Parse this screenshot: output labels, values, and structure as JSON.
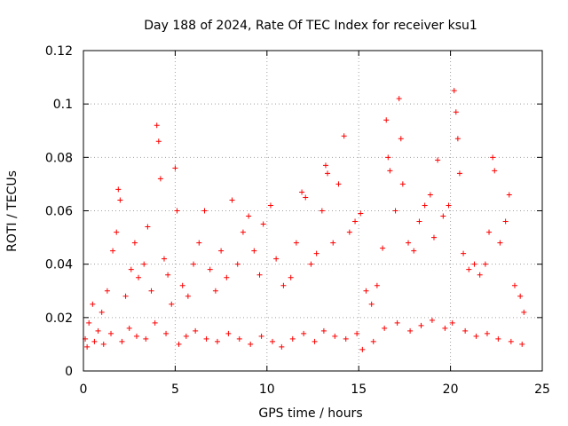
{
  "chart_data": {
    "type": "scatter",
    "title": "Day 188 of 2024, Rate Of TEC Index for receiver ksu1",
    "xlabel": "GPS time / hours",
    "ylabel": "ROTI / TECUs",
    "xlim": [
      0,
      25
    ],
    "ylim": [
      0,
      0.12
    ],
    "xticks": [
      0,
      5,
      10,
      15,
      20,
      25
    ],
    "yticks": [
      0,
      0.02,
      0.04,
      0.06,
      0.08,
      0.1,
      0.12
    ],
    "xtick_labels": [
      "0",
      "5",
      "10",
      "15",
      "20",
      "25"
    ],
    "ytick_labels": [
      "0",
      "0.02",
      "0.04",
      "0.06",
      "0.08",
      "0.1",
      "0.12"
    ],
    "grid": true,
    "legend": "none",
    "marker": "+",
    "color": "#ff0000",
    "series": [
      {
        "name": "ROTI",
        "points": [
          [
            0.1,
            0.012
          ],
          [
            0.3,
            0.018
          ],
          [
            0.5,
            0.025
          ],
          [
            0.8,
            0.015
          ],
          [
            1.0,
            0.022
          ],
          [
            1.3,
            0.03
          ],
          [
            1.6,
            0.045
          ],
          [
            1.8,
            0.052
          ],
          [
            1.9,
            0.068
          ],
          [
            2.0,
            0.064
          ],
          [
            2.3,
            0.028
          ],
          [
            2.6,
            0.038
          ],
          [
            2.8,
            0.048
          ],
          [
            3.0,
            0.035
          ],
          [
            3.3,
            0.04
          ],
          [
            3.5,
            0.054
          ],
          [
            3.7,
            0.03
          ],
          [
            4.0,
            0.092
          ],
          [
            4.1,
            0.086
          ],
          [
            4.2,
            0.072
          ],
          [
            4.4,
            0.042
          ],
          [
            4.6,
            0.036
          ],
          [
            4.8,
            0.025
          ],
          [
            5.0,
            0.076
          ],
          [
            5.1,
            0.06
          ],
          [
            5.4,
            0.032
          ],
          [
            5.7,
            0.028
          ],
          [
            6.0,
            0.04
          ],
          [
            6.3,
            0.048
          ],
          [
            6.6,
            0.06
          ],
          [
            6.9,
            0.038
          ],
          [
            7.2,
            0.03
          ],
          [
            7.5,
            0.045
          ],
          [
            7.8,
            0.035
          ],
          [
            8.1,
            0.064
          ],
          [
            8.4,
            0.04
          ],
          [
            8.7,
            0.052
          ],
          [
            9.0,
            0.058
          ],
          [
            9.3,
            0.045
          ],
          [
            9.6,
            0.036
          ],
          [
            9.8,
            0.055
          ],
          [
            10.2,
            0.062
          ],
          [
            10.5,
            0.042
          ],
          [
            10.9,
            0.032
          ],
          [
            11.3,
            0.035
          ],
          [
            11.6,
            0.048
          ],
          [
            11.9,
            0.067
          ],
          [
            12.1,
            0.065
          ],
          [
            12.4,
            0.04
          ],
          [
            12.7,
            0.044
          ],
          [
            13.0,
            0.06
          ],
          [
            13.2,
            0.077
          ],
          [
            13.3,
            0.074
          ],
          [
            13.6,
            0.048
          ],
          [
            13.9,
            0.07
          ],
          [
            14.2,
            0.088
          ],
          [
            14.5,
            0.052
          ],
          [
            14.8,
            0.056
          ],
          [
            15.1,
            0.059
          ],
          [
            15.4,
            0.03
          ],
          [
            15.7,
            0.025
          ],
          [
            16.0,
            0.032
          ],
          [
            16.3,
            0.046
          ],
          [
            16.5,
            0.094
          ],
          [
            16.6,
            0.08
          ],
          [
            16.7,
            0.075
          ],
          [
            17.0,
            0.06
          ],
          [
            17.2,
            0.102
          ],
          [
            17.3,
            0.087
          ],
          [
            17.4,
            0.07
          ],
          [
            17.7,
            0.048
          ],
          [
            18.0,
            0.045
          ],
          [
            18.3,
            0.056
          ],
          [
            18.6,
            0.062
          ],
          [
            18.9,
            0.066
          ],
          [
            19.1,
            0.05
          ],
          [
            19.3,
            0.079
          ],
          [
            19.6,
            0.058
          ],
          [
            19.9,
            0.062
          ],
          [
            20.2,
            0.105
          ],
          [
            20.3,
            0.097
          ],
          [
            20.4,
            0.087
          ],
          [
            20.5,
            0.074
          ],
          [
            20.7,
            0.044
          ],
          [
            21.0,
            0.038
          ],
          [
            21.3,
            0.04
          ],
          [
            21.6,
            0.036
          ],
          [
            21.9,
            0.04
          ],
          [
            22.1,
            0.052
          ],
          [
            22.3,
            0.08
          ],
          [
            22.4,
            0.075
          ],
          [
            22.7,
            0.048
          ],
          [
            23.0,
            0.056
          ],
          [
            23.2,
            0.066
          ],
          [
            23.5,
            0.032
          ],
          [
            23.8,
            0.028
          ],
          [
            24.0,
            0.022
          ],
          [
            0.2,
            0.009
          ],
          [
            0.6,
            0.011
          ],
          [
            1.1,
            0.01
          ],
          [
            1.5,
            0.014
          ],
          [
            2.1,
            0.011
          ],
          [
            2.5,
            0.016
          ],
          [
            2.9,
            0.013
          ],
          [
            3.4,
            0.012
          ],
          [
            3.9,
            0.018
          ],
          [
            4.5,
            0.014
          ],
          [
            5.2,
            0.01
          ],
          [
            5.6,
            0.013
          ],
          [
            6.1,
            0.015
          ],
          [
            6.7,
            0.012
          ],
          [
            7.3,
            0.011
          ],
          [
            7.9,
            0.014
          ],
          [
            8.5,
            0.012
          ],
          [
            9.1,
            0.01
          ],
          [
            9.7,
            0.013
          ],
          [
            10.3,
            0.011
          ],
          [
            10.8,
            0.009
          ],
          [
            11.4,
            0.012
          ],
          [
            12.0,
            0.014
          ],
          [
            12.6,
            0.011
          ],
          [
            13.1,
            0.015
          ],
          [
            13.7,
            0.013
          ],
          [
            14.3,
            0.012
          ],
          [
            14.9,
            0.014
          ],
          [
            15.2,
            0.008
          ],
          [
            15.8,
            0.011
          ],
          [
            16.4,
            0.016
          ],
          [
            17.1,
            0.018
          ],
          [
            17.8,
            0.015
          ],
          [
            18.4,
            0.017
          ],
          [
            19.0,
            0.019
          ],
          [
            19.7,
            0.016
          ],
          [
            20.1,
            0.018
          ],
          [
            20.8,
            0.015
          ],
          [
            21.4,
            0.013
          ],
          [
            22.0,
            0.014
          ],
          [
            22.6,
            0.012
          ],
          [
            23.3,
            0.011
          ],
          [
            23.9,
            0.01
          ]
        ]
      }
    ]
  }
}
